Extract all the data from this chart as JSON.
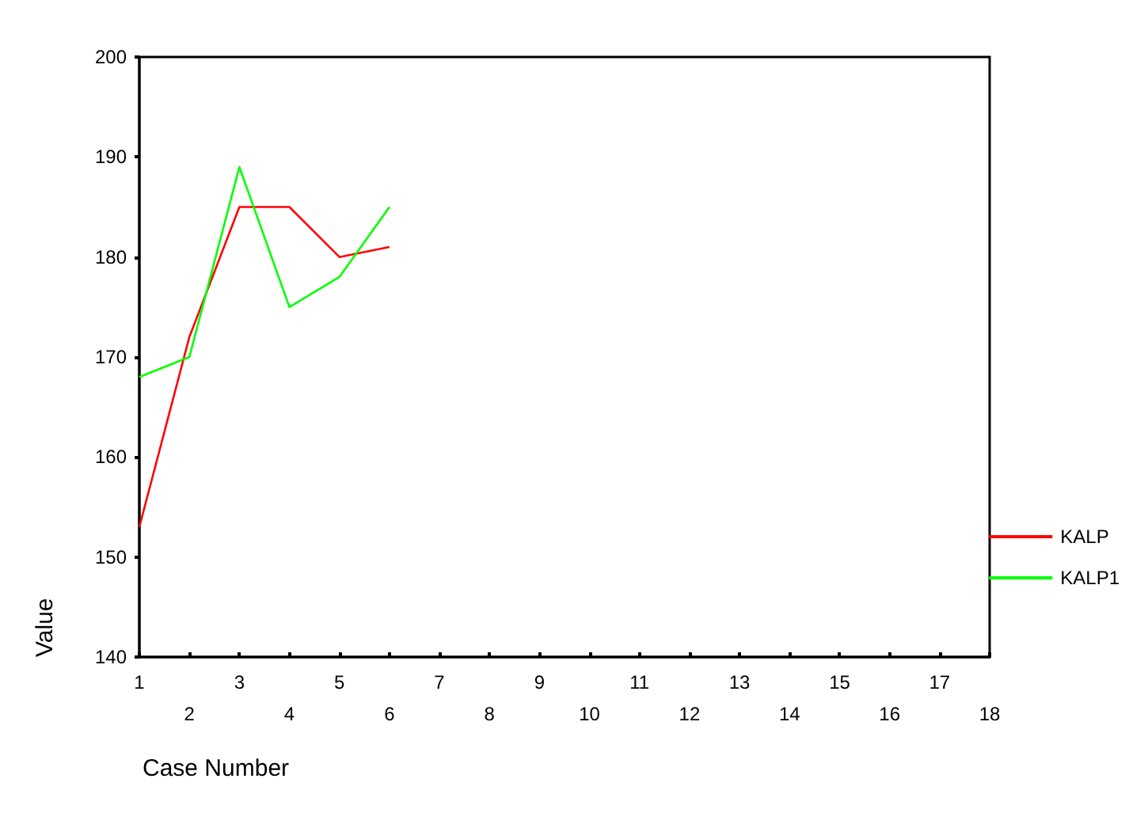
{
  "chart_data": {
    "type": "line",
    "xlabel": "Case Number",
    "ylabel": "Value",
    "categories": [
      "1",
      "2",
      "3",
      "4",
      "5",
      "6",
      "7",
      "8",
      "9",
      "10",
      "11",
      "12",
      "13",
      "14",
      "15",
      "16",
      "17",
      "18"
    ],
    "series": [
      {
        "name": "KALP",
        "color": "#ff0000",
        "values": [
          153,
          172,
          185,
          185,
          180,
          181,
          null,
          null,
          null,
          null,
          null,
          null,
          null,
          null,
          null,
          null,
          null,
          null
        ]
      },
      {
        "name": "KALP1",
        "color": "#00ff00",
        "values": [
          168,
          170,
          189,
          175,
          178,
          185,
          null,
          null,
          null,
          null,
          null,
          null,
          null,
          null,
          null,
          null,
          null,
          null
        ]
      }
    ],
    "ylim": [
      140,
      200
    ],
    "yticks": [
      140,
      150,
      160,
      170,
      180,
      190,
      200
    ],
    "grid": false,
    "legend": "right",
    "marker": "none",
    "line_style": "solid"
  }
}
